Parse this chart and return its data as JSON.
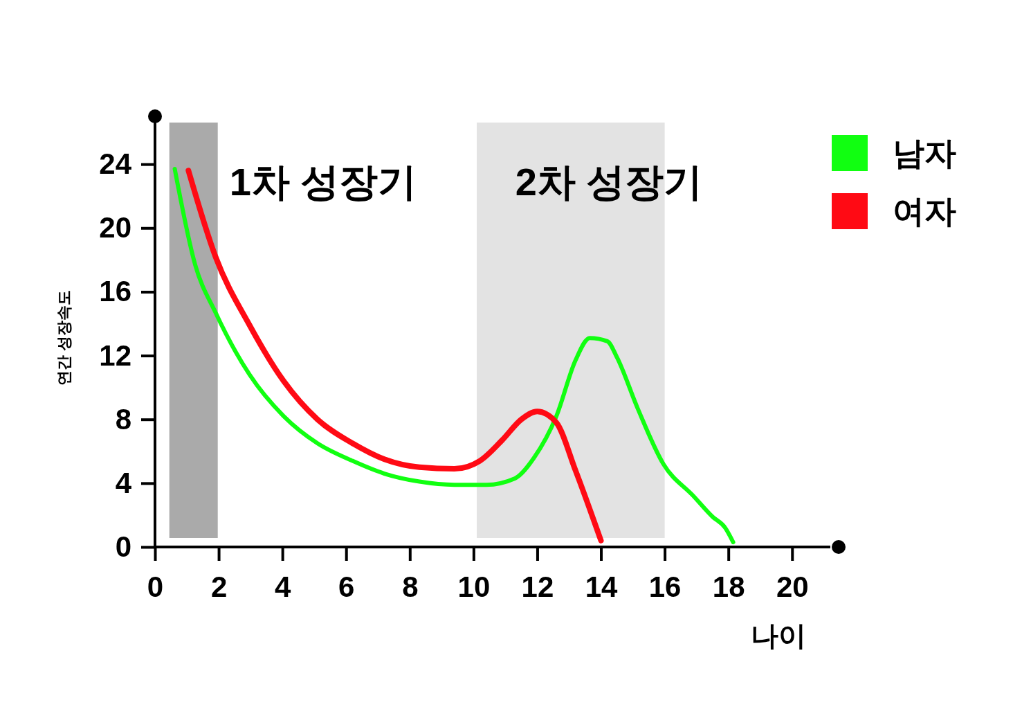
{
  "chart_data": {
    "type": "line",
    "xlabel": "나이",
    "ylabel": "연간 성장속도",
    "xlim": [
      0,
      21.2
    ],
    "ylim": [
      0,
      27
    ],
    "xticks": [
      0,
      2,
      4,
      6,
      8,
      10,
      12,
      14,
      16,
      18,
      20
    ],
    "yticks": [
      0,
      4,
      8,
      12,
      16,
      20,
      24
    ],
    "grid": false,
    "legend": "top right",
    "marker": "none",
    "line_style": "solid",
    "series": [
      {
        "name": "남자",
        "color": "#11ff11",
        "x": [
          0.62,
          1.26,
          1.9,
          2.97,
          4.04,
          5.1,
          6.2,
          7.2,
          8.3,
          9.4,
          10.4,
          11.3,
          11.9,
          12.6,
          13.2,
          13.65,
          14.2,
          14.5,
          15.15,
          15.96,
          16.9,
          17.5,
          17.9,
          18.15
        ],
        "values": [
          23.7,
          17.7,
          14.7,
          10.8,
          8.2,
          6.5,
          5.4,
          4.6,
          4.1,
          3.9,
          3.9,
          4.3,
          5.6,
          8.2,
          11.7,
          13.1,
          12.9,
          11.9,
          8.7,
          5.2,
          3.2,
          1.9,
          1.2,
          0.3
        ]
      },
      {
        "name": "여자",
        "color": "#ff0a14",
        "x": [
          1.05,
          1.9,
          2.97,
          4.04,
          5.1,
          6.2,
          7.2,
          8.3,
          9.4,
          10.2,
          10.9,
          11.5,
          12.0,
          12.6,
          13.2,
          14.0
        ],
        "values": [
          23.6,
          18.2,
          13.9,
          10.4,
          8.0,
          6.5,
          5.5,
          5.0,
          4.9,
          5.4,
          6.7,
          8.0,
          8.5,
          7.8,
          4.8,
          0.4
        ]
      }
    ],
    "bands": [
      {
        "axis": "x",
        "from": 0.45,
        "to": 1.97,
        "color": "#aaaaaa"
      },
      {
        "axis": "x",
        "from": 10.1,
        "to": 16,
        "color": "#e3e3e3"
      }
    ],
    "annotations": [
      "1차 성장기",
      "2차 성장기"
    ]
  }
}
